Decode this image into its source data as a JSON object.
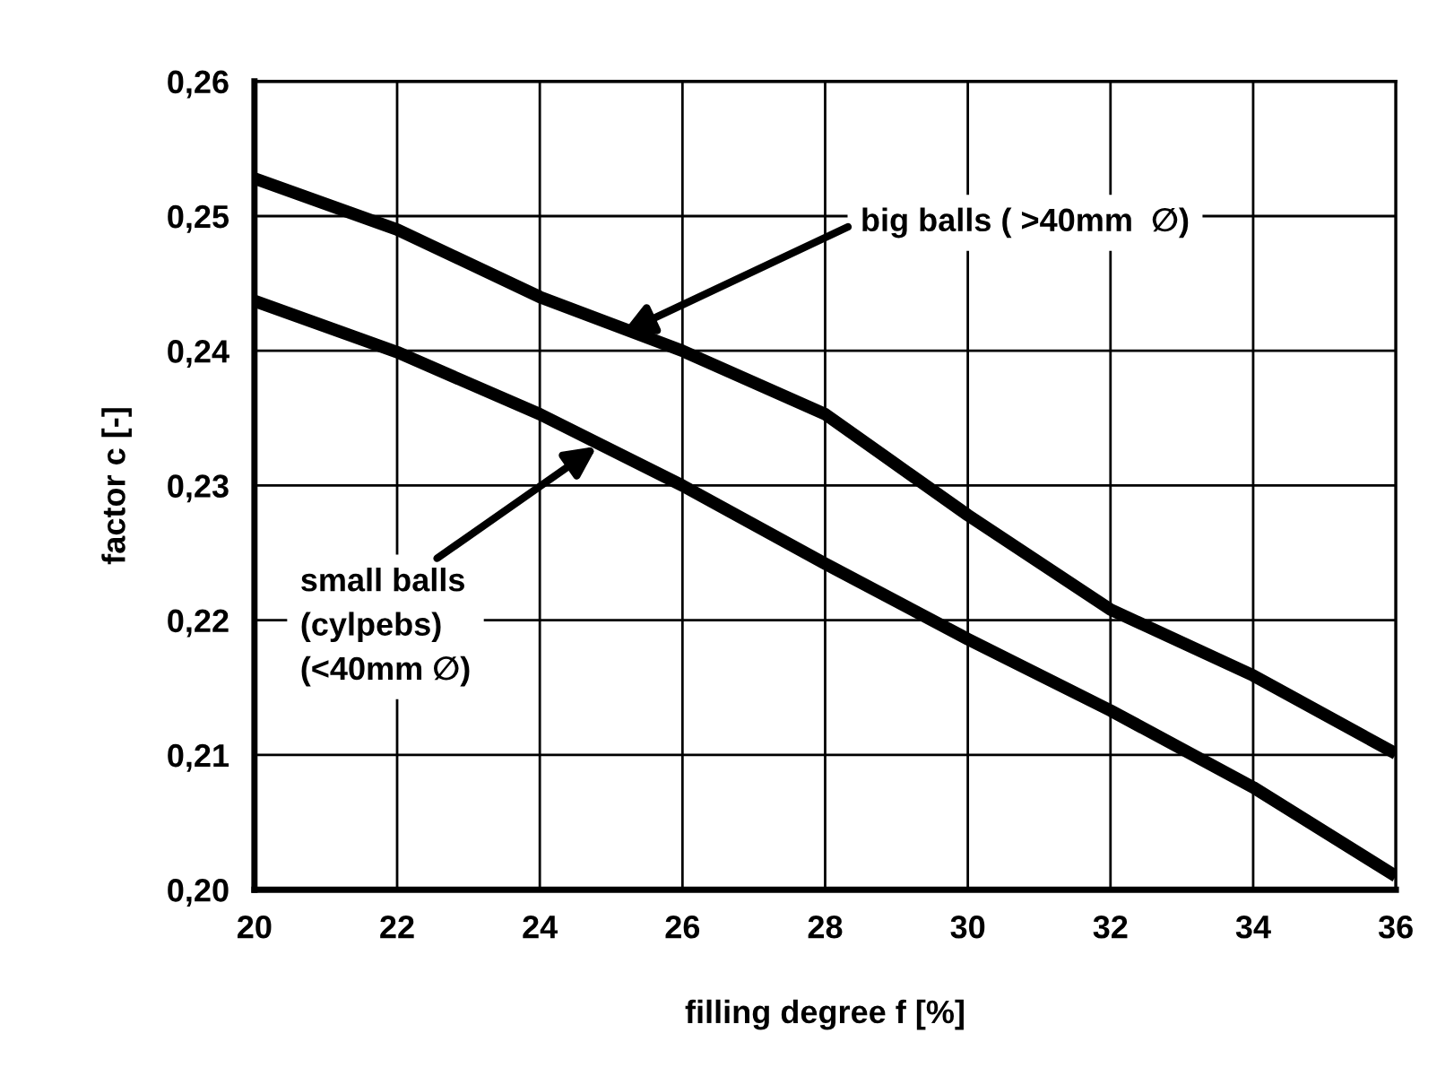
{
  "chart_data": {
    "type": "line",
    "xlabel": "filling degree f [%]",
    "ylabel": "factor c [-]",
    "xlim": [
      20,
      36
    ],
    "ylim": [
      0.2,
      0.26
    ],
    "xticks": [
      20,
      22,
      24,
      26,
      28,
      30,
      32,
      34,
      36
    ],
    "yticks": [
      {
        "value": 0.2,
        "label": "0,20"
      },
      {
        "value": 0.21,
        "label": "0,21"
      },
      {
        "value": 0.22,
        "label": "0,22"
      },
      {
        "value": 0.23,
        "label": "0,23"
      },
      {
        "value": 0.24,
        "label": "0,24"
      },
      {
        "value": 0.25,
        "label": "0,25"
      },
      {
        "value": 0.26,
        "label": "0,26"
      }
    ],
    "grid": true,
    "legend": false,
    "marker": "none",
    "line_style": "solid",
    "x": [
      20,
      22,
      24,
      26,
      28,
      30,
      32,
      34,
      36
    ],
    "series": [
      {
        "color": "#000000",
        "values": [
          0.2528,
          0.249,
          0.244,
          0.24,
          0.2353,
          0.2278,
          0.2208,
          0.2159,
          0.2101
        ]
      },
      {
        "color": "#000000",
        "values": [
          0.2437,
          0.2399,
          0.2353,
          0.23,
          0.2242,
          0.2186,
          0.2133,
          0.2076,
          0.201
        ]
      }
    ],
    "annotations": [
      {
        "text": "big balls ( >40mm  ∅)",
        "x": 25.15,
        "y": 0.2413
      },
      {
        "text": "small balls\n(cylpebs)\n(<40mm ∅)",
        "x": 24.8,
        "y": 0.2329
      }
    ]
  }
}
